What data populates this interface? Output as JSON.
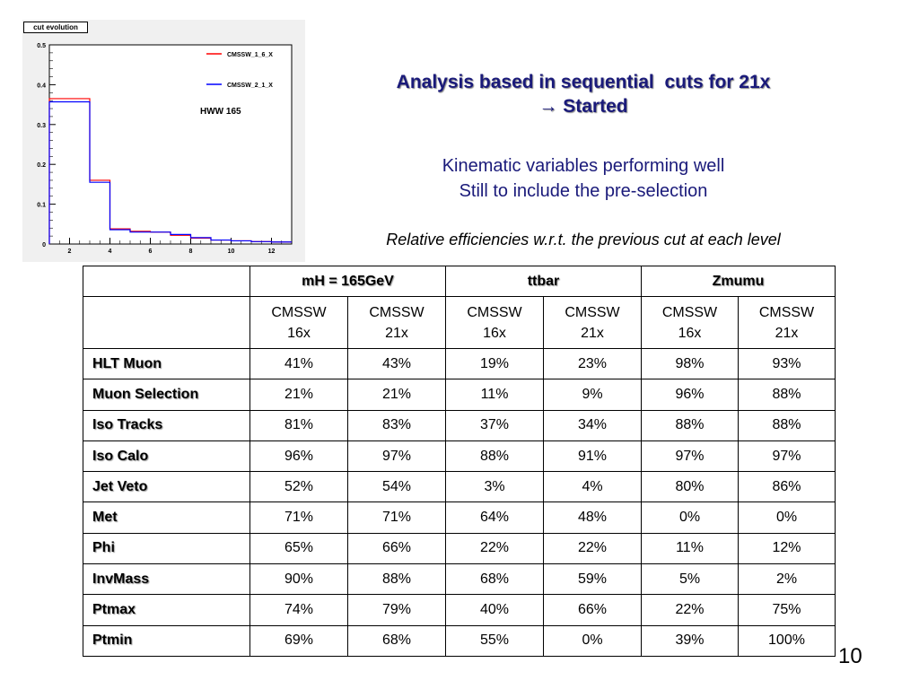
{
  "histogram": {
    "title": "cut evolution",
    "annotation": "HWW 165",
    "legend": [
      {
        "name": "CMSSW_1_6_X",
        "color": "#ff0000"
      },
      {
        "name": "CMSSW_2_1_X",
        "color": "#0000ff"
      }
    ]
  },
  "chart_data": {
    "type": "line",
    "title": "cut evolution",
    "xlabel": "",
    "ylabel": "",
    "xlim": [
      1,
      13
    ],
    "ylim": [
      0,
      0.5
    ],
    "x_ticks": [
      "2",
      "4",
      "6",
      "8",
      "10",
      "12"
    ],
    "y_ticks": [
      "0",
      "0.1",
      "0.2",
      "0.3",
      "0.4",
      "0.5"
    ],
    "bin_edges": [
      1,
      3,
      4,
      5,
      6,
      7,
      8,
      9,
      10,
      11,
      12,
      13
    ],
    "series": [
      {
        "name": "CMSSW_1_6_X",
        "color": "#ff0000",
        "values": [
          0.365,
          0.16,
          0.038,
          0.032,
          0.03,
          0.022,
          0.015,
          0.01,
          0.008,
          0.006,
          0.005
        ]
      },
      {
        "name": "CMSSW_2_1_X",
        "color": "#0000ff",
        "values": [
          0.357,
          0.155,
          0.036,
          0.03,
          0.03,
          0.024,
          0.016,
          0.01,
          0.008,
          0.006,
          0.005
        ]
      }
    ],
    "grid": false,
    "legend_position": "top-right"
  },
  "headline": {
    "line1": "Analysis based in sequential  cuts for 21x",
    "line2": "→ Started"
  },
  "notes": {
    "line1": "Kinematic variables performing well",
    "line2": "Still to include the pre-selection"
  },
  "caption": "Relative efficiencies w.r.t. the previous cut at each level",
  "table": {
    "groups": [
      "mH = 165GeV",
      "ttbar",
      "Zmumu"
    ],
    "sub_top": [
      "CMSSW",
      "CMSSW",
      "CMSSW",
      "CMSSW",
      "CMSSW",
      "CMSSW"
    ],
    "sub_bottom": [
      "16x",
      "21x",
      "16x",
      "21x",
      "16x",
      "21x"
    ],
    "rows": [
      {
        "label": "HLT Muon",
        "values": [
          "41%",
          "43%",
          "19%",
          "23%",
          "98%",
          "93%"
        ]
      },
      {
        "label": "Muon Selection",
        "values": [
          "21%",
          "21%",
          "11%",
          "9%",
          "96%",
          "88%"
        ]
      },
      {
        "label": "Iso Tracks",
        "values": [
          "81%",
          "83%",
          "37%",
          "34%",
          "88%",
          "88%"
        ]
      },
      {
        "label": "Iso Calo",
        "values": [
          "96%",
          "97%",
          "88%",
          "91%",
          "97%",
          "97%"
        ]
      },
      {
        "label": "Jet Veto",
        "values": [
          "52%",
          "54%",
          "3%",
          "4%",
          "80%",
          "86%"
        ]
      },
      {
        "label": "Met",
        "values": [
          "71%",
          "71%",
          "64%",
          "48%",
          "0%",
          "0%"
        ]
      },
      {
        "label": "Phi",
        "values": [
          "65%",
          "66%",
          "22%",
          "22%",
          "11%",
          "12%"
        ]
      },
      {
        "label": "InvMass",
        "values": [
          "90%",
          "88%",
          "68%",
          "59%",
          "5%",
          "2%"
        ]
      },
      {
        "label": "Ptmax",
        "values": [
          "74%",
          "79%",
          "40%",
          "66%",
          "22%",
          "75%"
        ]
      },
      {
        "label": "Ptmin",
        "values": [
          "69%",
          "68%",
          "55%",
          "0%",
          "39%",
          "100%"
        ]
      }
    ]
  },
  "page_number": "10"
}
